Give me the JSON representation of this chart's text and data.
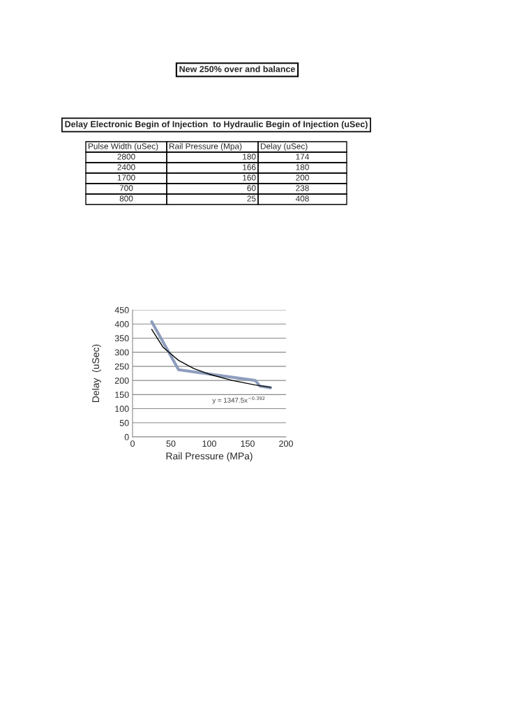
{
  "chart_data": [
    {
      "type": "other",
      "title": "New 250% over and balance",
      "subtitle": "Delay Electronic Begin of Injection  to Hydraulic Begin of Injection (uSec)",
      "annotations": [
        "Pulse Width (uSec)",
        "Rail Pressure (Mpa)",
        "Delay (uSec)",
        "2800",
        "180",
        "174",
        "2400",
        "166",
        "180",
        "1700",
        "160",
        "200",
        "700",
        "60",
        "238",
        "800",
        "25",
        "408"
      ]
    },
    {
      "type": "line",
      "xlabel": "Rail Pressure (MPa)",
      "ylabel": "Delay  (uSec)",
      "series": [
        {
          "type": "line",
          "color": "#8e9dbd",
          "x": [
            180,
            166,
            160,
            60,
            25
          ],
          "values": [
            174,
            180,
            200,
            238,
            408
          ]
        },
        {
          "type": "line",
          "color": "#000000",
          "x": [
            25,
            40,
            60,
            80,
            100,
            130,
            160,
            180
          ],
          "values": [
            381,
            317,
            271,
            242,
            222,
            200,
            184,
            176
          ]
        }
      ],
      "xlim": [
        0,
        200
      ],
      "xticks": [
        0,
        50,
        100,
        150,
        200
      ],
      "ylim": [
        0,
        450
      ],
      "yticks": [
        0,
        50,
        100,
        150,
        200,
        250,
        300,
        350,
        400,
        450
      ],
      "grid": "y",
      "marker": "none",
      "line_style": "solid",
      "annotations": [
        "y = 1347.5x$^{−0.392}$"
      ]
    }
  ]
}
